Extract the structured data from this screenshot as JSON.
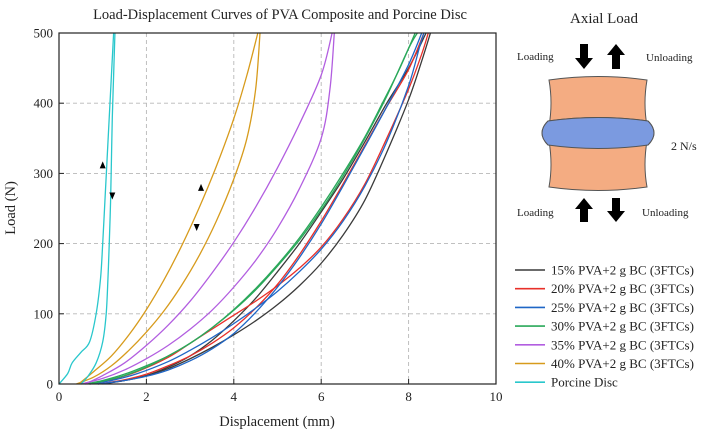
{
  "chart_data": {
    "type": "line",
    "title": "Load-Displacement Curves of PVA Composite and Porcine Disc",
    "xlabel": "Displacement (mm)",
    "ylabel": "Load (N)",
    "xlim": [
      0,
      10
    ],
    "ylim": [
      0,
      500
    ],
    "xticks": [
      0,
      2,
      4,
      6,
      8,
      10
    ],
    "yticks": [
      0,
      100,
      200,
      300,
      400,
      500
    ],
    "grid": true,
    "legend_position": "bottom-right",
    "series": [
      {
        "name": "15% PVA+2 g BC (3FTCs)",
        "color": "#3a3a3a",
        "loading": [
          [
            0.9,
            0
          ],
          [
            1.5,
            5
          ],
          [
            2.0,
            12
          ],
          [
            2.5,
            22
          ],
          [
            3.0,
            36
          ],
          [
            3.5,
            52
          ],
          [
            4.0,
            70
          ],
          [
            4.5,
            90
          ],
          [
            5.0,
            113
          ],
          [
            5.5,
            140
          ],
          [
            6.0,
            172
          ],
          [
            6.5,
            212
          ],
          [
            7.0,
            262
          ],
          [
            7.5,
            330
          ],
          [
            8.0,
            405
          ],
          [
            8.3,
            460
          ],
          [
            8.5,
            500
          ]
        ],
        "unloading": [
          [
            8.4,
            500
          ],
          [
            8.0,
            450
          ],
          [
            7.5,
            400
          ],
          [
            7.0,
            345
          ],
          [
            6.5,
            292
          ],
          [
            6.0,
            245
          ],
          [
            5.5,
            200
          ],
          [
            5.0,
            160
          ],
          [
            4.5,
            122
          ],
          [
            4.0,
            90
          ],
          [
            3.5,
            62
          ],
          [
            3.0,
            40
          ],
          [
            2.5,
            24
          ],
          [
            2.0,
            12
          ],
          [
            1.5,
            5
          ],
          [
            1.0,
            0
          ]
        ]
      },
      {
        "name": "20% PVA+2 g BC (3FTCs)",
        "color": "#e8302a",
        "loading": [
          [
            0.7,
            0
          ],
          [
            1.2,
            6
          ],
          [
            1.8,
            18
          ],
          [
            2.5,
            38
          ],
          [
            3.0,
            58
          ],
          [
            3.5,
            78
          ],
          [
            4.0,
            98
          ],
          [
            4.5,
            118
          ],
          [
            5.0,
            140
          ],
          [
            5.5,
            165
          ],
          [
            6.0,
            195
          ],
          [
            6.5,
            235
          ],
          [
            7.0,
            285
          ],
          [
            7.5,
            350
          ],
          [
            8.0,
            420
          ],
          [
            8.3,
            470
          ],
          [
            8.45,
            500
          ]
        ],
        "unloading": [
          [
            8.35,
            500
          ],
          [
            8.0,
            448
          ],
          [
            7.5,
            395
          ],
          [
            7.0,
            340
          ],
          [
            6.5,
            285
          ],
          [
            6.0,
            232
          ],
          [
            5.5,
            184
          ],
          [
            5.0,
            142
          ],
          [
            4.5,
            108
          ],
          [
            4.0,
            80
          ],
          [
            3.5,
            58
          ],
          [
            3.0,
            40
          ],
          [
            2.5,
            26
          ],
          [
            2.0,
            14
          ],
          [
            1.5,
            6
          ],
          [
            0.9,
            0
          ]
        ]
      },
      {
        "name": "25% PVA+2 g BC (3FTCs)",
        "color": "#1f66c6",
        "loading": [
          [
            0.7,
            0
          ],
          [
            1.2,
            5
          ],
          [
            1.8,
            15
          ],
          [
            2.5,
            32
          ],
          [
            3.0,
            48
          ],
          [
            3.5,
            66
          ],
          [
            4.0,
            86
          ],
          [
            4.5,
            108
          ],
          [
            5.0,
            132
          ],
          [
            5.5,
            160
          ],
          [
            6.0,
            192
          ],
          [
            6.5,
            232
          ],
          [
            7.0,
            282
          ],
          [
            7.5,
            345
          ],
          [
            8.0,
            425
          ],
          [
            8.25,
            480
          ],
          [
            8.35,
            500
          ]
        ],
        "unloading": [
          [
            8.3,
            500
          ],
          [
            8.0,
            455
          ],
          [
            7.5,
            395
          ],
          [
            7.0,
            338
          ],
          [
            6.5,
            282
          ],
          [
            6.0,
            228
          ],
          [
            5.5,
            180
          ],
          [
            5.0,
            138
          ],
          [
            4.5,
            102
          ],
          [
            4.0,
            72
          ],
          [
            3.5,
            50
          ],
          [
            3.0,
            33
          ],
          [
            2.5,
            20
          ],
          [
            2.0,
            11
          ],
          [
            1.5,
            5
          ],
          [
            0.9,
            0
          ]
        ]
      },
      {
        "name": "30% PVA+2 g BC (3FTCs)",
        "color": "#2aa85a",
        "loading": [
          [
            0.6,
            0
          ],
          [
            1.0,
            5
          ],
          [
            1.5,
            14
          ],
          [
            2.0,
            26
          ],
          [
            2.5,
            40
          ],
          [
            3.0,
            58
          ],
          [
            3.5,
            80
          ],
          [
            4.0,
            105
          ],
          [
            4.5,
            134
          ],
          [
            5.0,
            168
          ],
          [
            5.5,
            205
          ],
          [
            6.0,
            248
          ],
          [
            6.5,
            296
          ],
          [
            7.0,
            350
          ],
          [
            7.5,
            410
          ],
          [
            8.0,
            478
          ],
          [
            8.2,
            500
          ]
        ],
        "unloading": [
          [
            8.15,
            500
          ],
          [
            7.8,
            450
          ],
          [
            7.4,
            400
          ],
          [
            7.0,
            352
          ],
          [
            6.5,
            300
          ],
          [
            6.0,
            252
          ],
          [
            5.5,
            208
          ],
          [
            5.0,
            170
          ],
          [
            4.5,
            136
          ],
          [
            4.0,
            106
          ],
          [
            3.5,
            80
          ],
          [
            3.0,
            58
          ],
          [
            2.5,
            40
          ],
          [
            2.0,
            24
          ],
          [
            1.5,
            12
          ],
          [
            1.0,
            4
          ],
          [
            0.7,
            0
          ]
        ]
      },
      {
        "name": "35% PVA+2 g BC (3FTCs)",
        "color": "#b25ee0",
        "loading": [
          [
            0.5,
            0
          ],
          [
            1.0,
            8
          ],
          [
            1.5,
            20
          ],
          [
            2.0,
            36
          ],
          [
            2.5,
            55
          ],
          [
            3.0,
            78
          ],
          [
            3.5,
            105
          ],
          [
            4.0,
            138
          ],
          [
            4.5,
            176
          ],
          [
            5.0,
            222
          ],
          [
            5.5,
            278
          ],
          [
            6.0,
            350
          ],
          [
            6.2,
            420
          ],
          [
            6.3,
            500
          ]
        ],
        "unloading": [
          [
            6.25,
            500
          ],
          [
            6.0,
            440
          ],
          [
            5.5,
            370
          ],
          [
            5.0,
            308
          ],
          [
            4.5,
            252
          ],
          [
            4.0,
            202
          ],
          [
            3.5,
            158
          ],
          [
            3.0,
            118
          ],
          [
            2.5,
            84
          ],
          [
            2.0,
            55
          ],
          [
            1.5,
            30
          ],
          [
            1.0,
            12
          ],
          [
            0.6,
            0
          ]
        ]
      },
      {
        "name": "40% PVA+2 g BC (3FTCs)",
        "color": "#d79b1c",
        "loading": [
          [
            0.4,
            0
          ],
          [
            0.8,
            10
          ],
          [
            1.2,
            26
          ],
          [
            1.6,
            48
          ],
          [
            2.0,
            74
          ],
          [
            2.4,
            104
          ],
          [
            2.8,
            140
          ],
          [
            3.2,
            182
          ],
          [
            3.6,
            232
          ],
          [
            4.0,
            292
          ],
          [
            4.3,
            350
          ],
          [
            4.5,
            420
          ],
          [
            4.6,
            500
          ]
        ],
        "unloading": [
          [
            4.55,
            500
          ],
          [
            4.3,
            440
          ],
          [
            4.0,
            378
          ],
          [
            3.6,
            310
          ],
          [
            3.2,
            250
          ],
          [
            2.8,
            196
          ],
          [
            2.4,
            148
          ],
          [
            2.0,
            106
          ],
          [
            1.6,
            70
          ],
          [
            1.2,
            40
          ],
          [
            0.8,
            18
          ],
          [
            0.45,
            0
          ]
        ]
      },
      {
        "name": "Porcine Disc",
        "color": "#29c7cc",
        "loading": [
          [
            0,
            0
          ],
          [
            0.2,
            15
          ],
          [
            0.3,
            30
          ],
          [
            0.5,
            45
          ],
          [
            0.7,
            60
          ],
          [
            0.85,
            100
          ],
          [
            0.95,
            150
          ],
          [
            1.0,
            200
          ],
          [
            1.05,
            260
          ],
          [
            1.1,
            320
          ],
          [
            1.15,
            380
          ],
          [
            1.2,
            440
          ],
          [
            1.25,
            500
          ]
        ],
        "unloading": [
          [
            1.28,
            500
          ],
          [
            1.25,
            440
          ],
          [
            1.22,
            380
          ],
          [
            1.2,
            320
          ],
          [
            1.18,
            260
          ],
          [
            1.15,
            200
          ],
          [
            1.12,
            150
          ],
          [
            1.08,
            100
          ],
          [
            1.0,
            60
          ],
          [
            0.85,
            30
          ],
          [
            0.65,
            10
          ],
          [
            0.5,
            0
          ]
        ]
      }
    ]
  },
  "diagram": {
    "title": "Axial Load",
    "loading_top": "Loading",
    "unloading_top": "Unloading",
    "rate_label": "2 N/s",
    "loading_bottom": "Loading",
    "unloading_bottom": "Unloading",
    "vertebra_color": "#f4ac82",
    "disc_color": "#7b9ae0"
  }
}
